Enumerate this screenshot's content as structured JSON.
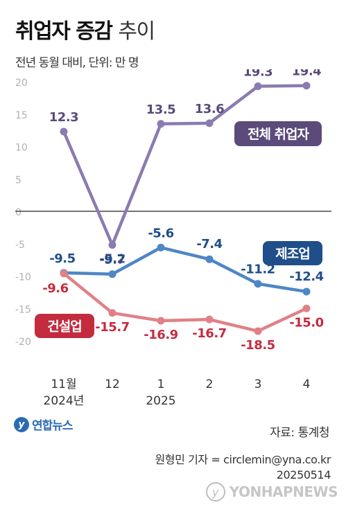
{
  "header": {
    "title_bold": "취업자 증감",
    "title_light": "추이",
    "subtitle": "전년 동월 대비, 단위: 만 명"
  },
  "colors": {
    "total": "#8b7bb0",
    "total_label_bg": "#5b4a7a",
    "mfg": "#4e86c6",
    "mfg_label_bg": "#1f4e8a",
    "constr": "#e08187",
    "constr_label_bg": "#c42b3f"
  },
  "chart_data": {
    "type": "line",
    "categories": [
      "11월",
      "12",
      "1",
      "2",
      "3",
      "4"
    ],
    "year_labels": [
      "2024년",
      "",
      "2025",
      "",
      "",
      ""
    ],
    "ylim": [
      -25,
      20
    ],
    "yticks": [
      20,
      15,
      10,
      5,
      0,
      -5,
      -10,
      -15,
      -20
    ],
    "series": [
      {
        "name": "전체 취업자",
        "key": "total",
        "values": [
          12.3,
          -5.2,
          13.5,
          13.6,
          19.3,
          19.4
        ],
        "labels": [
          "12.3",
          "-5.2",
          "13.5",
          "13.6",
          "19.3",
          "19.4"
        ]
      },
      {
        "name": "제조업",
        "key": "mfg",
        "values": [
          -9.5,
          -9.7,
          -5.6,
          -7.4,
          -11.2,
          -12.4
        ],
        "labels": [
          "-9.5",
          "-9.7",
          "-5.6",
          "-7.4",
          "-11.2",
          "-12.4"
        ]
      },
      {
        "name": "건설업",
        "key": "constr",
        "values": [
          -9.6,
          -15.7,
          -16.9,
          -16.7,
          -18.5,
          -15.0
        ],
        "labels": [
          "-9.6",
          "-15.7",
          "-16.9",
          "-16.7",
          "-18.5",
          "-15.0"
        ]
      }
    ]
  },
  "footer": {
    "logo_mark": "y",
    "logo_text": "연합뉴스",
    "source": "자료: 통계청",
    "credit_line1": "원형민 기자 = circlemin@yna.co.kr",
    "credit_line2": "20250514",
    "watermark_mark": "y",
    "watermark_text": "YONHAPNEWS"
  }
}
